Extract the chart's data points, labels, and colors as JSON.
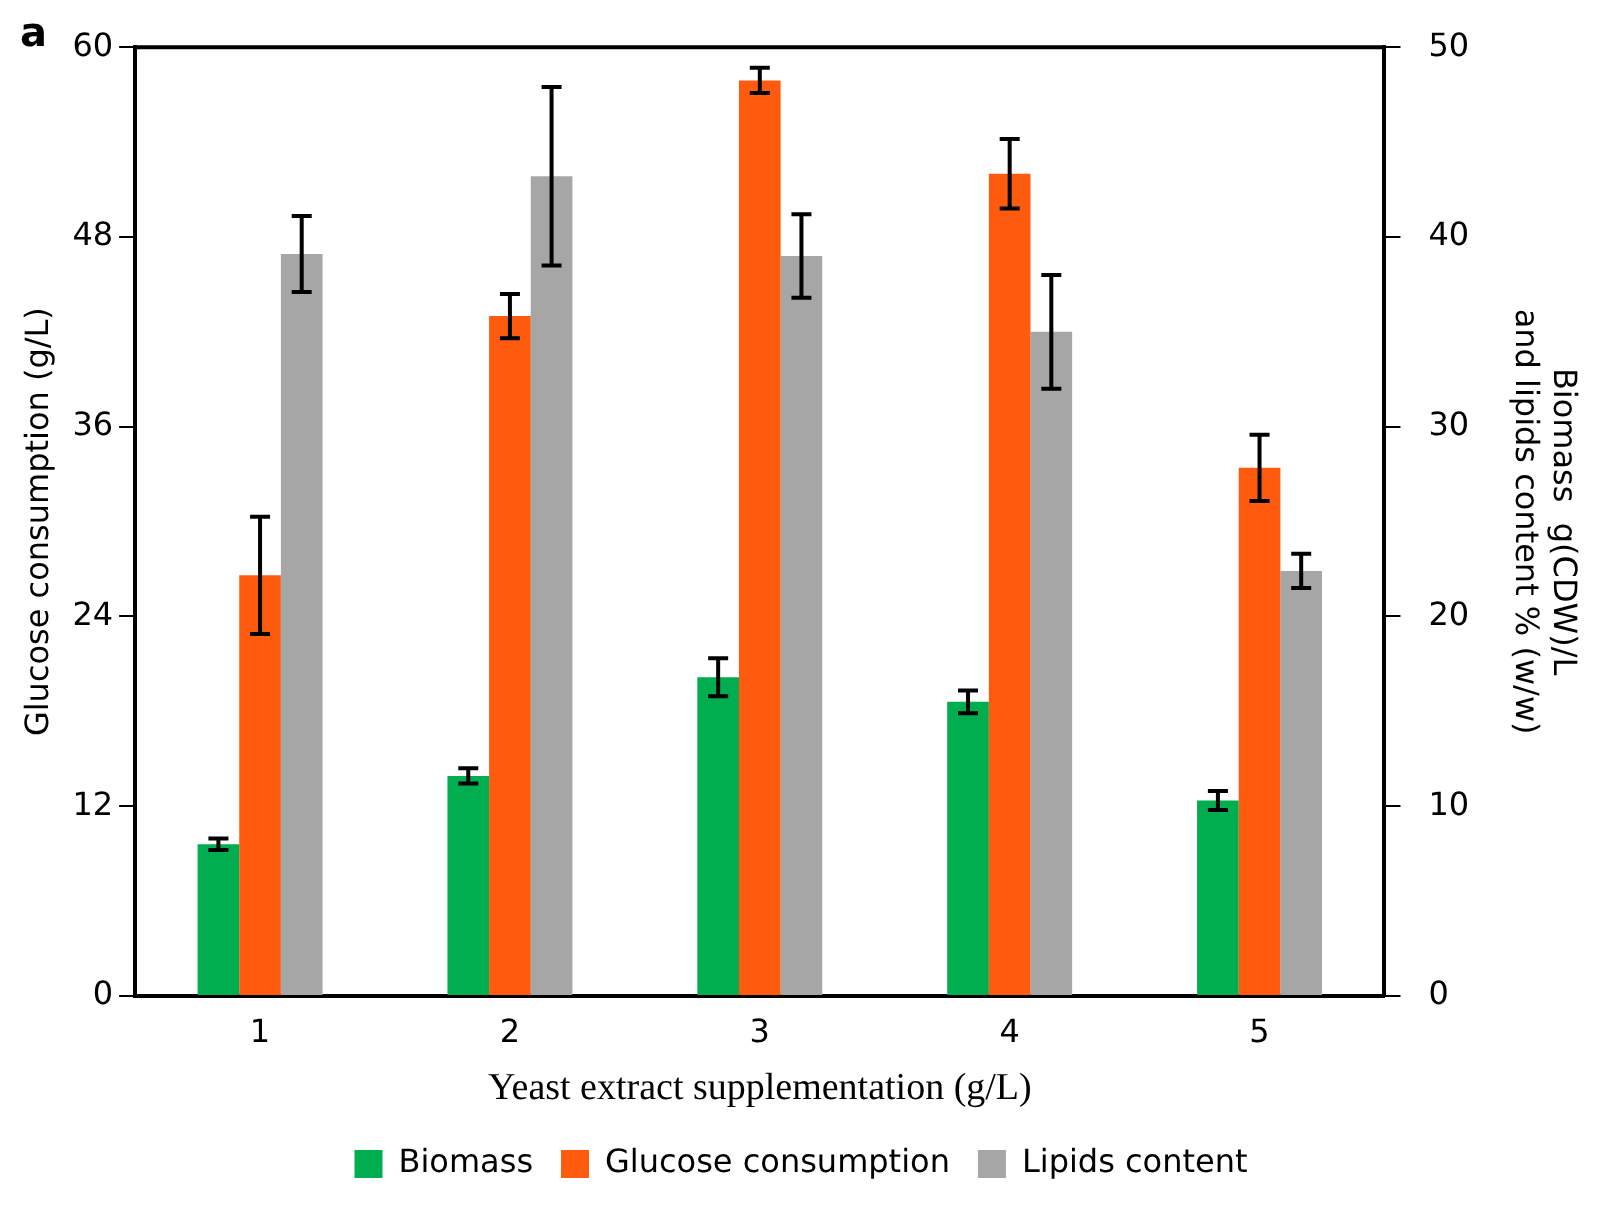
{
  "chart_data": {
    "type": "bar",
    "xlabel": "Yeast extract supplementation (g/L)",
    "ylabel": "Glucose consumption (g/L)",
    "y2label": "Biomass  g(CDW)/L\nand lipids content % (w/w)",
    "annotations": [
      "a"
    ],
    "categories": [
      "1",
      "2",
      "3",
      "4",
      "5"
    ],
    "series": [
      {
        "name": "Biomass",
        "color": "#00ad4f",
        "axis": "y2",
        "values": [
          8.0,
          11.6,
          16.8,
          15.5,
          10.3
        ],
        "errors": [
          0.3,
          0.4,
          1.0,
          0.6,
          0.5
        ]
      },
      {
        "name": "Glucose consumption",
        "color": "#ff5b0f",
        "values": [
          26.6,
          43.0,
          57.9,
          52.0,
          33.4
        ],
        "errors": [
          3.7,
          1.4,
          0.8,
          2.2,
          2.1
        ]
      },
      {
        "name": "Lipids content",
        "color": "#a6a6a6",
        "axis": "y2",
        "values": [
          39.1,
          43.2,
          39.0,
          35.0,
          22.4
        ],
        "errors": [
          2.0,
          4.7,
          2.2,
          3.0,
          0.9
        ]
      }
    ],
    "ylim": [
      0,
      60
    ],
    "yticks": [
      0,
      12,
      24,
      36,
      48,
      60
    ],
    "y2lim": [
      0,
      50
    ],
    "y2ticks": [
      0,
      10,
      20,
      30,
      40,
      50
    ],
    "grid": false,
    "legend": "bottom"
  }
}
